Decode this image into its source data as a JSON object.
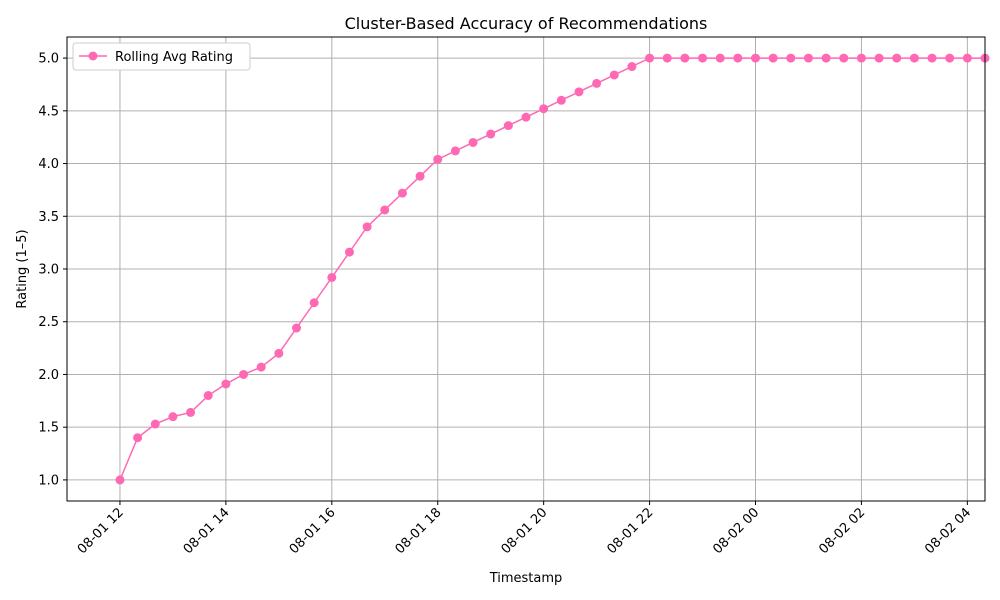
{
  "chart_data": {
    "type": "line",
    "title": "Cluster-Based Accuracy of Recommendations",
    "xlabel": "Timestamp",
    "ylabel": "Rating (1–5)",
    "x_start": "2024-08-01 12:00",
    "x_step_minutes": 20,
    "xlim": [
      "2024-08-01 11:00",
      "2024-08-02 04:20"
    ],
    "ylim": [
      0.8,
      5.2
    ],
    "x_ticks": [
      "08-01 12",
      "08-01 14",
      "08-01 16",
      "08-01 18",
      "08-01 20",
      "08-01 22",
      "08-02 00",
      "08-02 02",
      "08-02 04"
    ],
    "x_tick_hours": [
      0,
      2,
      4,
      6,
      8,
      10,
      12,
      14,
      16
    ],
    "y_ticks": [
      "1.0",
      "1.5",
      "2.0",
      "2.5",
      "3.0",
      "3.5",
      "4.0",
      "4.5",
      "5.0"
    ],
    "y_tick_values": [
      1.0,
      1.5,
      2.0,
      2.5,
      3.0,
      3.5,
      4.0,
      4.5,
      5.0
    ],
    "grid": true,
    "legend_position": "top-left",
    "series": [
      {
        "name": "Rolling Avg Rating",
        "color": "#ff69b4",
        "marker": "circle",
        "values": [
          1.0,
          1.4,
          1.53,
          1.6,
          1.64,
          1.8,
          1.91,
          2.0,
          2.07,
          2.2,
          2.44,
          2.68,
          2.92,
          3.16,
          3.4,
          3.56,
          3.72,
          3.88,
          4.04,
          4.12,
          4.2,
          4.28,
          4.36,
          4.44,
          4.52,
          4.6,
          4.68,
          4.76,
          4.84,
          4.92,
          5.0,
          5.0,
          5.0,
          5.0,
          5.0,
          5.0,
          5.0,
          5.0,
          5.0,
          5.0,
          5.0,
          5.0,
          5.0,
          5.0,
          5.0,
          5.0,
          5.0,
          5.0,
          5.0,
          5.0
        ]
      }
    ]
  }
}
